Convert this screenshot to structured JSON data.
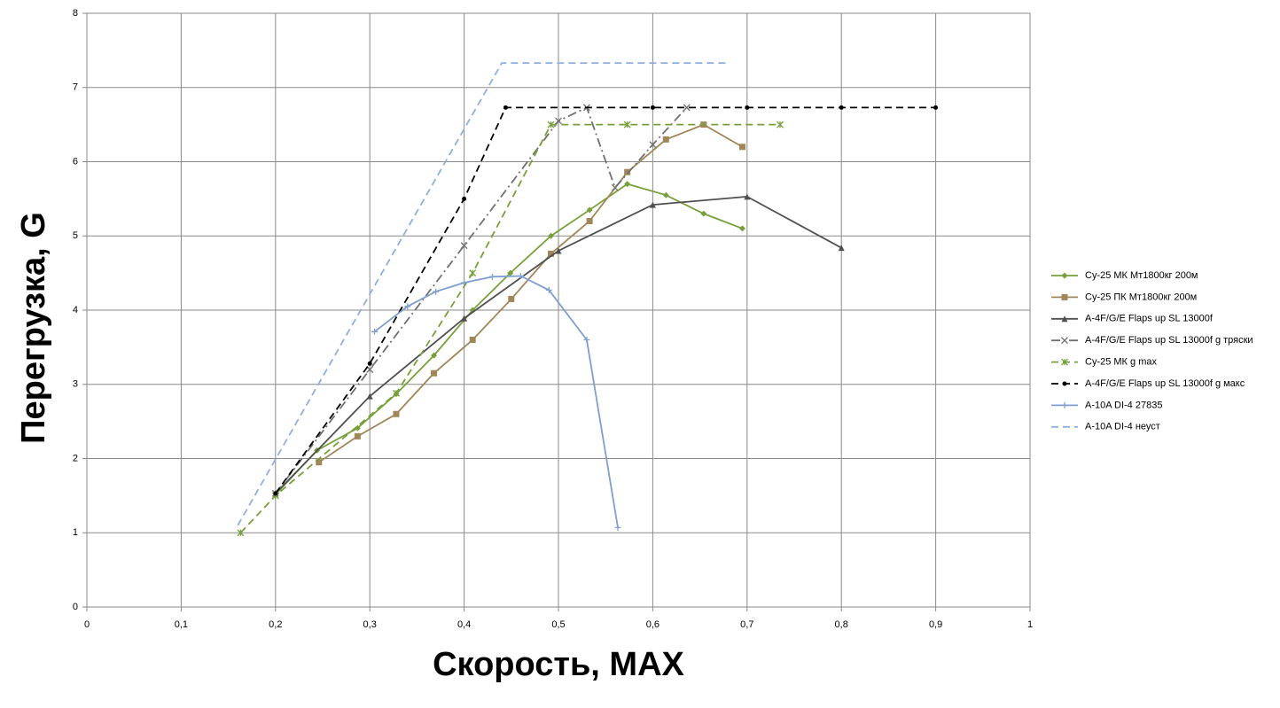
{
  "chart_data": {
    "type": "scatter",
    "x_label": "Скорость, MAX",
    "y_label": "Перегрузка, G",
    "xlim": [
      0,
      1
    ],
    "ylim": [
      0,
      8
    ],
    "xticks": [
      0,
      {
        "value": 0.1,
        "label": "0,1"
      },
      {
        "value": 0.2,
        "label": "0,2"
      },
      {
        "value": 0.3,
        "label": "0,3"
      },
      {
        "value": 0.4,
        "label": "0,4"
      },
      {
        "value": 0.5,
        "label": "0,5"
      },
      {
        "value": 0.6,
        "label": "0,6"
      },
      {
        "value": 0.7,
        "label": "0,7"
      },
      {
        "value": 0.8,
        "label": "0,8"
      },
      {
        "value": 0.9,
        "label": "0,9"
      },
      1
    ],
    "yticks": [
      0,
      1,
      2,
      3,
      4,
      5,
      6,
      7,
      8
    ],
    "grid": true,
    "legend": "right",
    "series": [
      {
        "name": "Су-25 МК Мт1800кг 200м",
        "color": "#77a03c",
        "line_style": "solid",
        "marker": "diamond",
        "x": [
          0.201,
          0.244,
          0.287,
          0.328,
          0.368,
          0.409,
          0.449,
          0.492,
          0.533,
          0.573,
          0.614,
          0.654,
          0.695
        ],
        "values": [
          1.53,
          2.11,
          2.41,
          2.87,
          3.39,
          4.0,
          4.5,
          5.0,
          5.35,
          5.7,
          5.55,
          5.3,
          5.1
        ]
      },
      {
        "name": "Су-25 ПК Мт1800кг 200м",
        "color": "#a08658",
        "line_style": "solid",
        "marker": "square",
        "x": [
          0.246,
          0.287,
          0.328,
          0.368,
          0.409,
          0.45,
          0.492,
          0.533,
          0.573,
          0.614,
          0.654,
          0.695
        ],
        "values": [
          1.95,
          2.3,
          2.6,
          3.15,
          3.6,
          4.15,
          4.76,
          5.2,
          5.86,
          6.3,
          6.5,
          6.2
        ]
      },
      {
        "name": "A-4F/G/E Flaps up SL 13000f",
        "color": "#505050",
        "line_style": "solid",
        "marker": "triangle",
        "x": [
          0.2,
          0.3,
          0.4,
          0.5,
          0.6,
          0.7,
          0.8
        ],
        "values": [
          1.53,
          2.84,
          3.89,
          4.8,
          5.42,
          5.53,
          4.84
        ]
      },
      {
        "name": "A-4F/G/E Flaps up SL 13000f g тряски",
        "color": "#707070",
        "line_style": "dash-dot",
        "marker": "x",
        "x": [
          0.2,
          0.3,
          0.4,
          0.5,
          0.53,
          0.56,
          0.6,
          0.636
        ],
        "values": [
          1.53,
          3.2,
          4.87,
          6.55,
          6.73,
          5.65,
          6.23,
          6.73
        ]
      },
      {
        "name": "Су-25 МК g max",
        "color": "#77a03c",
        "line_style": "dashed",
        "marker": "asterisk",
        "x": [
          0.163,
          0.2,
          0.328,
          0.409,
          0.492,
          0.573,
          0.735
        ],
        "values": [
          1.0,
          1.5,
          2.88,
          4.5,
          6.5,
          6.5,
          6.5
        ]
      },
      {
        "name": "A-4F/G/E Flaps up SL 13000f g макс",
        "color": "#000000",
        "line_style": "dashed",
        "marker": "circle",
        "x": [
          0.2,
          0.3,
          0.4,
          0.444,
          0.6,
          0.7,
          0.8,
          0.9
        ],
        "values": [
          1.53,
          3.28,
          5.5,
          6.73,
          6.73,
          6.73,
          6.73,
          6.73
        ]
      },
      {
        "name": "A-10A DI-4 27835",
        "color": "#7f9fcf",
        "line_style": "solid",
        "marker": "plus",
        "x": [
          0.305,
          0.34,
          0.37,
          0.4,
          0.43,
          0.46,
          0.49,
          0.53,
          0.563
        ],
        "values": [
          3.71,
          4.05,
          4.25,
          4.37,
          4.45,
          4.46,
          4.27,
          3.6,
          1.07
        ]
      },
      {
        "name": "A-10A DI-4 неуст",
        "color": "#8fb0dc",
        "line_style": "dashed",
        "marker": "none",
        "x": [
          0.16,
          0.44,
          0.68
        ],
        "values": [
          1.1,
          7.33,
          7.33
        ]
      }
    ]
  }
}
